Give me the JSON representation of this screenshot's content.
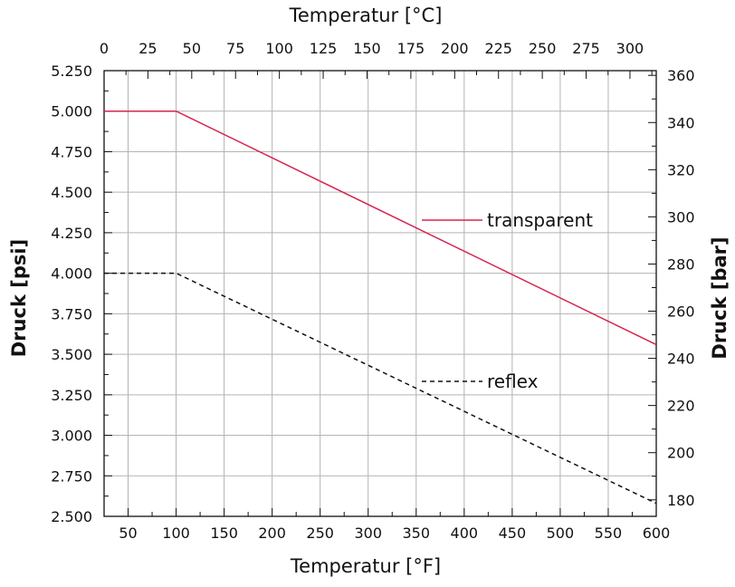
{
  "chart_data": {
    "type": "line",
    "grid": true,
    "x_bottom": {
      "label": "Temperatur [°F]",
      "range": [
        25,
        600
      ],
      "ticks": [
        50,
        100,
        150,
        200,
        250,
        300,
        350,
        400,
        450,
        500,
        550,
        600
      ],
      "tick_labels": [
        "50",
        "100",
        "150",
        "200",
        "250",
        "300",
        "350",
        "400",
        "450",
        "500",
        "550",
        "600"
      ]
    },
    "x_top": {
      "label": "Temperatur [°C]",
      "range": [
        0,
        315
      ],
      "ticks": [
        0,
        25,
        50,
        75,
        100,
        125,
        150,
        175,
        200,
        225,
        250,
        275,
        300
      ],
      "tick_labels": [
        "0",
        "25",
        "50",
        "75",
        "100",
        "125",
        "150",
        "175",
        "200",
        "225",
        "250",
        "275",
        "300"
      ]
    },
    "y_left": {
      "label": "Druck [psi]",
      "range": [
        2500,
        5250
      ],
      "ticks": [
        2500,
        2750,
        3000,
        3250,
        3500,
        3750,
        4000,
        4250,
        4500,
        4750,
        5000,
        5250
      ],
      "tick_labels": [
        "2.500",
        "2.750",
        "3.000",
        "3.250",
        "3.500",
        "3.750",
        "4.000",
        "4.250",
        "4.500",
        "4.750",
        "5.000",
        "5.250"
      ]
    },
    "y_right": {
      "label": "Druck [bar]",
      "range": [
        173,
        362
      ],
      "ticks": [
        180,
        200,
        220,
        240,
        260,
        280,
        300,
        320,
        340,
        360
      ],
      "tick_labels": [
        "180",
        "200",
        "220",
        "240",
        "260",
        "280",
        "300",
        "320",
        "340",
        "360"
      ]
    },
    "series": [
      {
        "name": "transparent",
        "style": "solid",
        "color": "#d6254f",
        "x": [
          25,
          100,
          600
        ],
        "y": [
          5000,
          5000,
          3560
        ]
      },
      {
        "name": "reflex",
        "style": "dashed",
        "color": "#111111",
        "x": [
          25,
          100,
          600
        ],
        "y": [
          4000,
          4000,
          2580
        ]
      }
    ],
    "legend": "inside-right"
  }
}
